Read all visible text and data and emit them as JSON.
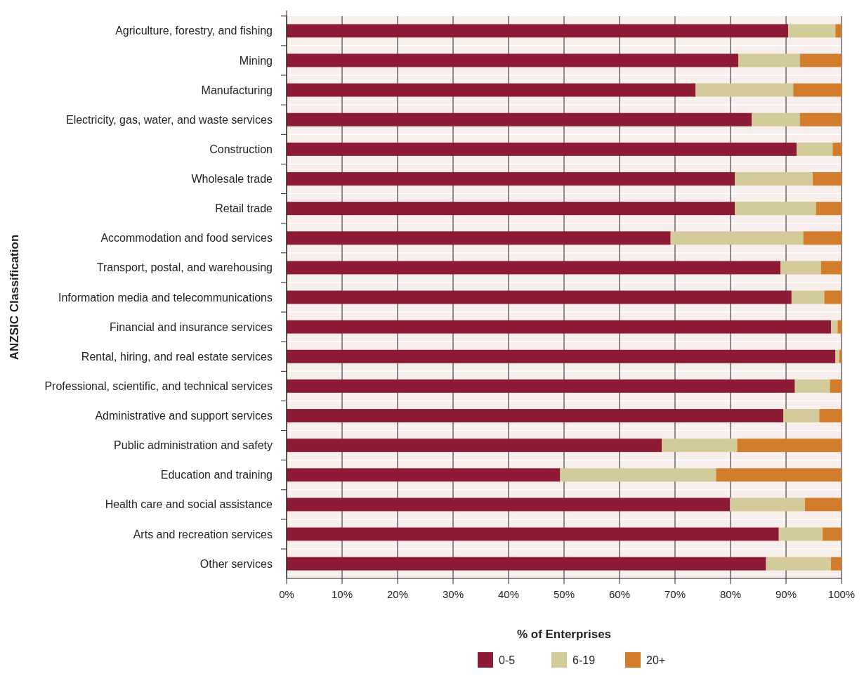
{
  "chart_data": {
    "type": "bar",
    "orientation": "horizontal",
    "stacked": true,
    "xlabel": "% of Enterprises",
    "ylabel": "ANZSIC Classification",
    "categories": [
      "Agriculture, forestry, and fishing",
      "Mining",
      "Manufacturing",
      "Electricity, gas, water, and waste services",
      "Construction",
      "Wholesale trade",
      "Retail trade",
      "Accommodation and food services",
      "Transport, postal, and warehousing",
      "Information media and telecommunications",
      "Financial and insurance services",
      "Rental, hiring, and real estate services",
      "Professional, scientific, and technical services",
      "Administrative and support services",
      "Public administration and safety",
      "Education and training",
      "Health care and social assistance",
      "Arts and recreation services",
      "Other services"
    ],
    "series": [
      {
        "name": "0-5",
        "color": "#8e1b36",
        "values": [
          90.4,
          81.4,
          73.7,
          83.8,
          91.9,
          80.8,
          80.8,
          69.2,
          89.0,
          91.0,
          98.1,
          98.9,
          91.6,
          89.5,
          67.6,
          49.3,
          79.9,
          88.7,
          86.4
        ]
      },
      {
        "name": "6-19",
        "color": "#d3cc9a",
        "values": [
          8.5,
          11.1,
          17.6,
          8.7,
          6.5,
          14.0,
          14.6,
          23.9,
          7.3,
          5.9,
          1.2,
          0.7,
          6.3,
          6.5,
          13.6,
          28.1,
          13.5,
          7.9,
          11.7
        ]
      },
      {
        "name": "20+",
        "color": "#d27d2c",
        "values": [
          1.1,
          7.5,
          8.7,
          7.5,
          1.6,
          5.2,
          4.6,
          6.9,
          3.7,
          3.1,
          0.7,
          0.4,
          2.1,
          4.0,
          18.8,
          22.6,
          6.6,
          3.4,
          1.9
        ]
      }
    ],
    "xlim": [
      0,
      100
    ],
    "xticks": [
      {
        "value": 0,
        "label": "0%"
      },
      {
        "value": 10,
        "label": "10%"
      },
      {
        "value": 20,
        "label": "20%"
      },
      {
        "value": 30,
        "label": "30%"
      },
      {
        "value": 40,
        "label": "40%"
      },
      {
        "value": 50,
        "label": "50%"
      },
      {
        "value": 60,
        "label": "60%"
      },
      {
        "value": 70,
        "label": "70%"
      },
      {
        "value": 80,
        "label": "80%"
      },
      {
        "value": 90,
        "label": "90%"
      },
      {
        "value": 100,
        "label": "100%"
      }
    ],
    "grid": "x",
    "legend": "bottom"
  }
}
